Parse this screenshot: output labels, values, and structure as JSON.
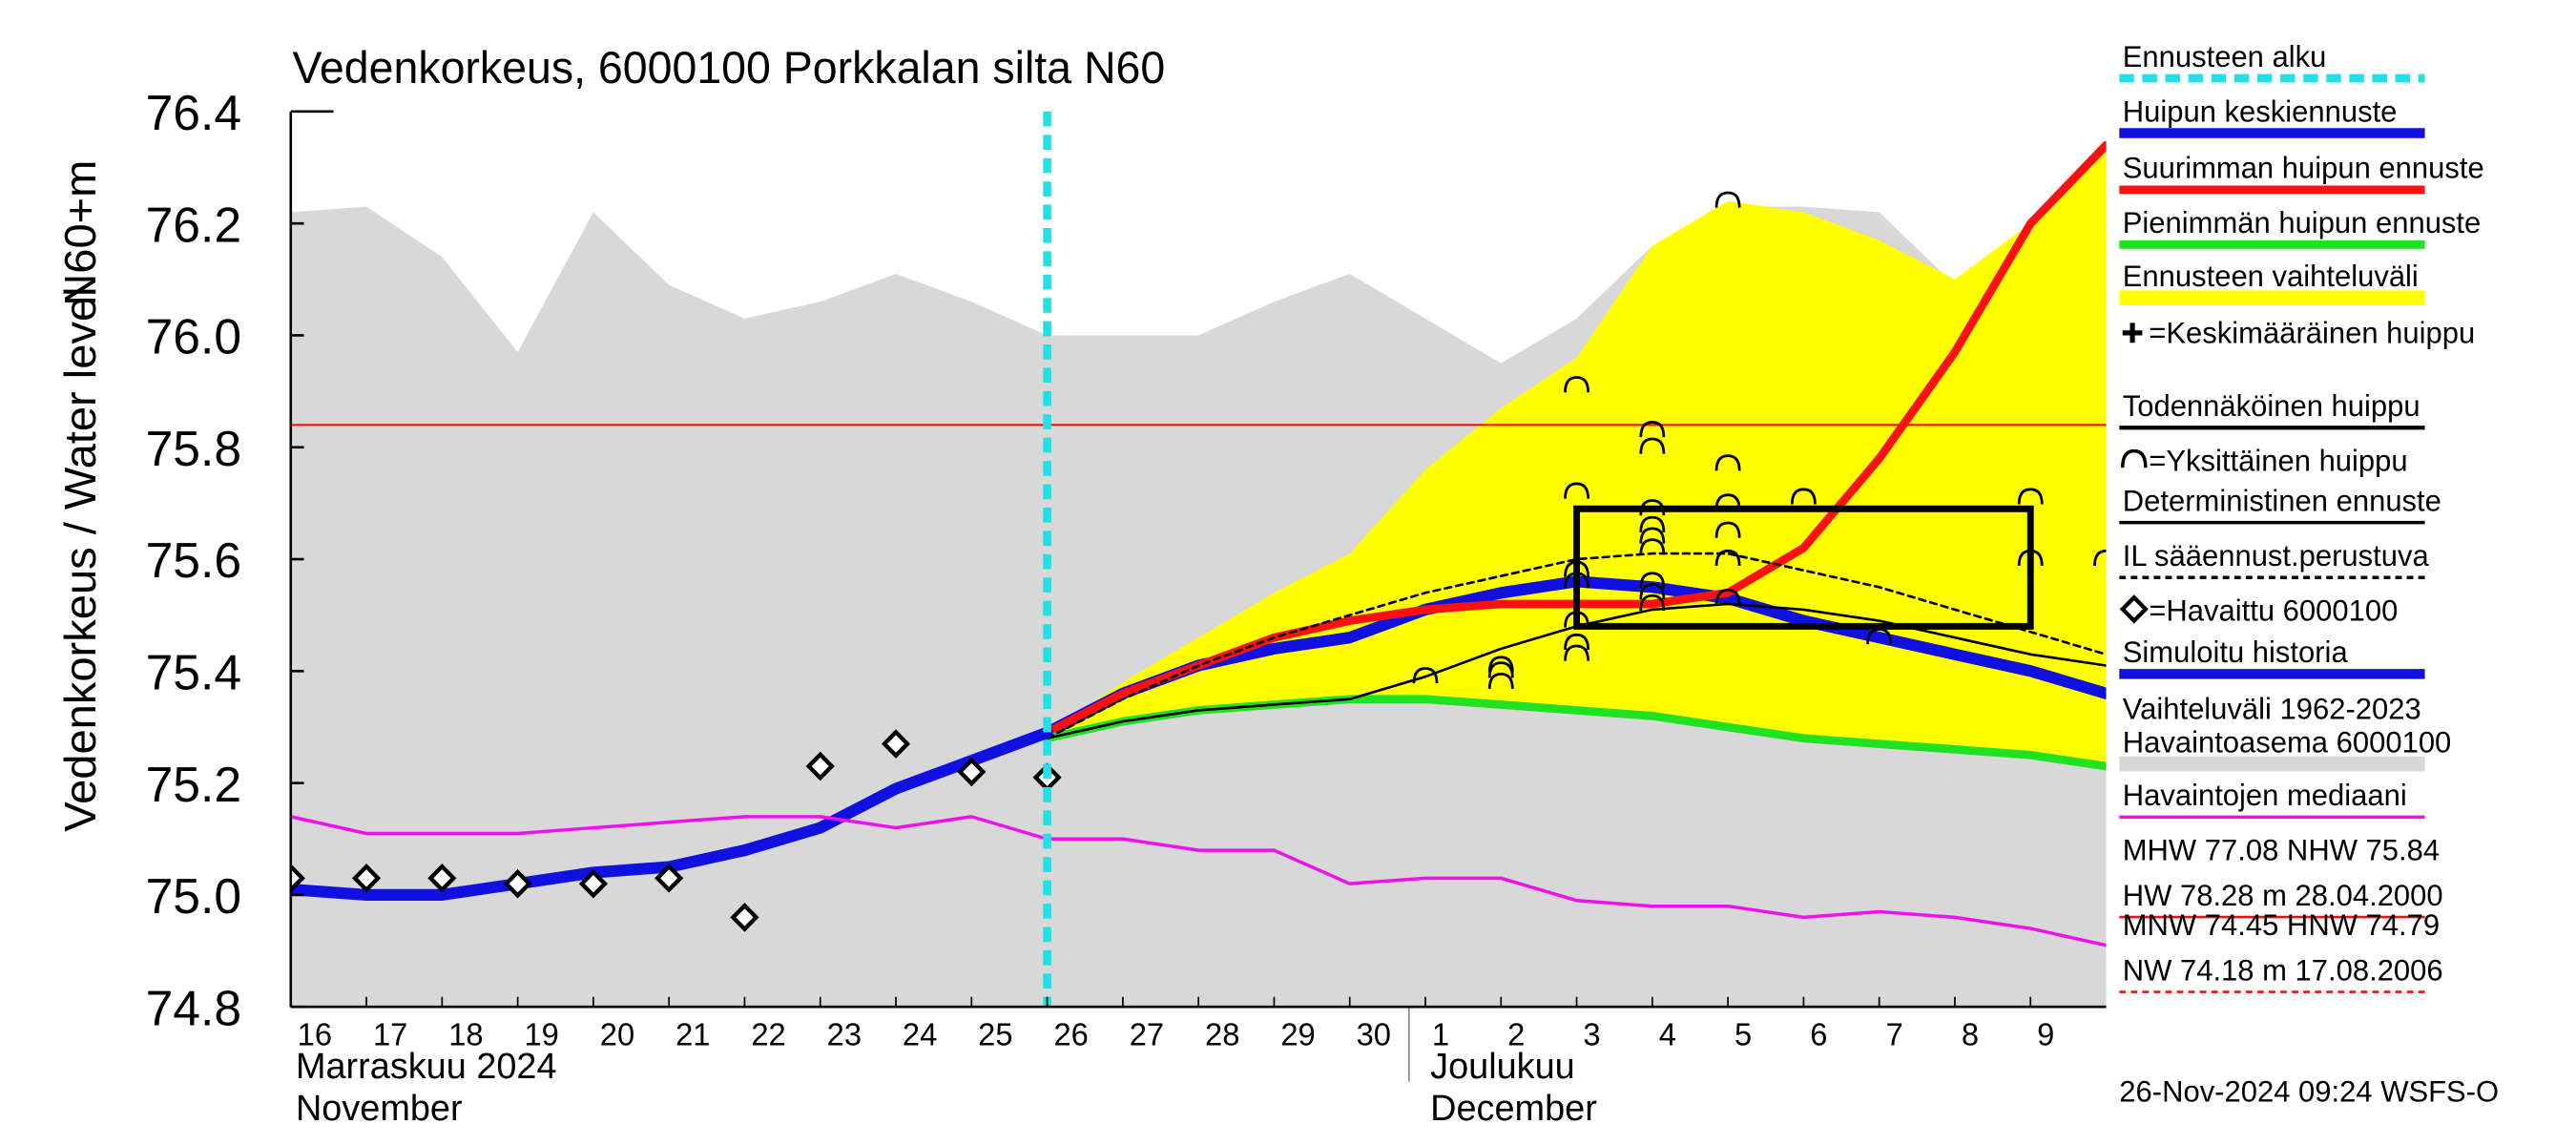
{
  "chart_data": {
    "type": "line",
    "title": "Vedenkorkeus, 6000100 Porkkalan silta N60",
    "ylabel": "Vedenkorkeus / Water level",
    "yunit": "N60+m",
    "footer": "26-Nov-2024 09:24 WSFS-O",
    "month_labels": [
      {
        "x": "2024-11-16",
        "lines": [
          "Marraskuu 2024",
          "November"
        ]
      },
      {
        "x": "2024-12-01",
        "lines": [
          "Joulukuu",
          "December"
        ]
      }
    ],
    "xlim": [
      "2024-11-16",
      "2024-12-10"
    ],
    "ylim": [
      74.8,
      76.4
    ],
    "yticks": [
      74.8,
      {
        "value": 75.0,
        "label": "75.0"
      },
      75.2,
      75.4,
      75.6,
      75.8,
      {
        "value": 76.0,
        "label": "76.0"
      },
      76.2,
      76.4
    ],
    "xticks": [
      {
        "value": "2024-11-16",
        "label": "16"
      },
      {
        "value": "2024-11-17",
        "label": "17"
      },
      {
        "value": "2024-11-18",
        "label": "18"
      },
      {
        "value": "2024-11-19",
        "label": "19"
      },
      {
        "value": "2024-11-20",
        "label": "20"
      },
      {
        "value": "2024-11-21",
        "label": "21"
      },
      {
        "value": "2024-11-22",
        "label": "22"
      },
      {
        "value": "2024-11-23",
        "label": "23"
      },
      {
        "value": "2024-11-24",
        "label": "24"
      },
      {
        "value": "2024-11-25",
        "label": "25"
      },
      {
        "value": "2024-11-26",
        "label": "26"
      },
      {
        "value": "2024-11-27",
        "label": "27"
      },
      {
        "value": "2024-11-28",
        "label": "28"
      },
      {
        "value": "2024-11-29",
        "label": "29"
      },
      {
        "value": "2024-11-30",
        "label": "30"
      },
      {
        "value": "2024-12-01",
        "label": "1"
      },
      {
        "value": "2024-12-02",
        "label": "2"
      },
      {
        "value": "2024-12-03",
        "label": "3"
      },
      {
        "value": "2024-12-04",
        "label": "4"
      },
      {
        "value": "2024-12-05",
        "label": "5"
      },
      {
        "value": "2024-12-06",
        "label": "6"
      },
      {
        "value": "2024-12-07",
        "label": "7"
      },
      {
        "value": "2024-12-08",
        "label": "8"
      },
      {
        "value": "2024-12-09",
        "label": "9"
      }
    ],
    "x": [
      "2024-11-16",
      "2024-11-17",
      "2024-11-18",
      "2024-11-19",
      "2024-11-20",
      "2024-11-21",
      "2024-11-22",
      "2024-11-23",
      "2024-11-24",
      "2024-11-25",
      "2024-11-26",
      "2024-11-27",
      "2024-11-28",
      "2024-11-29",
      "2024-11-30",
      "2024-12-01",
      "2024-12-02",
      "2024-12-03",
      "2024-12-04",
      "2024-12-05",
      "2024-12-06",
      "2024-12-07",
      "2024-12-08",
      "2024-12-09",
      "2024-12-10"
    ],
    "series": [
      {
        "name": "Ennusteen alku",
        "kind": "vline",
        "color": "#22e0e8",
        "x": "2024-11-26"
      },
      {
        "name": "Huipun keskiennuste",
        "kind": "line",
        "color": "#1010e0",
        "linewidth": 7,
        "values": [
          null,
          null,
          null,
          null,
          null,
          null,
          null,
          null,
          null,
          null,
          75.29,
          75.36,
          75.41,
          75.44,
          75.46,
          75.51,
          75.54,
          75.56,
          75.55,
          75.53,
          75.49,
          75.46,
          75.43,
          75.4,
          75.36
        ]
      },
      {
        "name": "Suurimman huipun ennuste",
        "kind": "line",
        "color": "#ff1010",
        "linewidth": 5,
        "values": [
          null,
          null,
          null,
          null,
          null,
          null,
          null,
          null,
          null,
          null,
          75.29,
          75.36,
          75.41,
          75.46,
          75.49,
          75.51,
          75.52,
          75.52,
          75.52,
          75.54,
          75.62,
          75.78,
          75.97,
          76.2,
          76.34
        ]
      },
      {
        "name": "Pienimmän huipun ennuste",
        "kind": "line",
        "color": "#22e022",
        "linewidth": 5,
        "values": [
          null,
          null,
          null,
          null,
          null,
          null,
          null,
          null,
          null,
          null,
          75.28,
          75.31,
          75.33,
          75.34,
          75.35,
          75.35,
          75.34,
          75.33,
          75.32,
          75.3,
          75.28,
          75.27,
          75.26,
          75.25,
          75.23
        ]
      },
      {
        "name": "Ennusteen vaihteluväli",
        "kind": "band",
        "color": "#ffff00",
        "lower": [
          null,
          null,
          null,
          null,
          null,
          null,
          null,
          null,
          null,
          null,
          75.28,
          75.31,
          75.33,
          75.34,
          75.35,
          75.35,
          75.34,
          75.33,
          75.32,
          75.3,
          75.28,
          75.27,
          75.26,
          75.25,
          75.23
        ],
        "upper": [
          null,
          null,
          null,
          null,
          null,
          null,
          null,
          null,
          null,
          null,
          75.29,
          75.38,
          75.46,
          75.54,
          75.61,
          75.76,
          75.87,
          75.96,
          76.16,
          76.24,
          76.22,
          76.17,
          76.1,
          76.2,
          76.33
        ]
      },
      {
        "name": "=Keskimääräinen huippu",
        "kind": "none",
        "marker": "plus",
        "color": "#000000"
      },
      {
        "name": "Todennäköinen huippu",
        "kind": "box",
        "color": "#000000",
        "x": [
          "2024-12-03",
          "2024-12-09"
        ],
        "y": [
          75.48,
          75.69
        ]
      },
      {
        "name": "=Yksittäinen huippu",
        "kind": "arcs",
        "color": "#000000",
        "x": [
          "2024-12-01",
          "2024-12-02",
          "2024-12-02",
          "2024-12-02",
          "2024-12-03",
          "2024-12-03",
          "2024-12-03",
          "2024-12-03",
          "2024-12-03",
          "2024-12-03",
          "2024-12-03",
          "2024-12-04",
          "2024-12-04",
          "2024-12-04",
          "2024-12-04",
          "2024-12-04",
          "2024-12-04",
          "2024-12-04",
          "2024-12-04",
          "2024-12-04",
          "2024-12-05",
          "2024-12-05",
          "2024-12-05",
          "2024-12-05",
          "2024-12-05",
          "2024-12-05",
          "2024-12-06",
          "2024-12-07",
          "2024-12-09",
          "2024-12-09",
          "2024-12-10"
        ],
        "values": [
          75.39,
          75.41,
          75.4,
          75.38,
          75.91,
          75.72,
          75.58,
          75.56,
          75.49,
          75.45,
          75.43,
          75.83,
          75.8,
          75.69,
          75.66,
          75.64,
          75.62,
          75.56,
          75.54,
          75.52,
          76.24,
          75.77,
          75.7,
          75.65,
          75.6,
          75.53,
          75.71,
          75.46,
          75.71,
          75.6,
          75.6
        ]
      },
      {
        "name": "Deterministinen ennuste",
        "kind": "line",
        "color": "#000000",
        "linewidth": 1.5,
        "values": [
          null,
          null,
          null,
          null,
          null,
          null,
          null,
          null,
          null,
          null,
          75.28,
          75.31,
          75.33,
          75.34,
          75.35,
          75.39,
          75.44,
          75.48,
          75.51,
          75.52,
          75.51,
          75.49,
          75.46,
          75.43,
          75.41
        ]
      },
      {
        "name": "IL sääennust.perustuva",
        "kind": "line",
        "color": "#000000",
        "linewidth": 1.5,
        "dash": true,
        "values": [
          null,
          null,
          null,
          null,
          null,
          null,
          null,
          null,
          null,
          null,
          75.28,
          75.35,
          75.41,
          75.46,
          75.5,
          75.54,
          75.57,
          75.6,
          75.61,
          75.61,
          75.58,
          75.55,
          75.51,
          75.47,
          75.43
        ]
      },
      {
        "name": "=Havaittu 6000100",
        "kind": "markers",
        "color": "#000000",
        "values": [
          75.03,
          75.03,
          75.03,
          75.02,
          75.02,
          75.03,
          74.96,
          75.23,
          75.27,
          75.22,
          75.21,
          null,
          null,
          null,
          null,
          null,
          null,
          null,
          null,
          null,
          null,
          null,
          null,
          null,
          null
        ]
      },
      {
        "name": "Simuloitu historia",
        "kind": "line",
        "color": "#1010e0",
        "linewidth": 7,
        "values": [
          75.01,
          75.0,
          75.0,
          75.02,
          75.04,
          75.05,
          75.08,
          75.12,
          75.19,
          75.24,
          75.29,
          null,
          null,
          null,
          null,
          null,
          null,
          null,
          null,
          null,
          null,
          null,
          null,
          null,
          null
        ]
      },
      {
        "name": [
          "Vaihteluväli 1962-2023",
          " Havaintoasema 6000100"
        ],
        "kind": "area",
        "color": "#d8d8d8",
        "values": [
          76.22,
          76.23,
          76.14,
          75.97,
          76.22,
          76.09,
          76.03,
          76.06,
          76.11,
          76.06,
          76.0,
          76.0,
          76.0,
          76.06,
          76.11,
          76.03,
          75.95,
          76.03,
          76.16,
          76.23,
          76.23,
          76.22,
          76.09,
          76.18,
          76.2
        ]
      },
      {
        "name": "Havaintojen mediaani",
        "kind": "line",
        "color": "#ee11ee",
        "linewidth": 2,
        "values": [
          75.14,
          75.11,
          75.11,
          75.11,
          75.12,
          75.13,
          75.14,
          75.14,
          75.12,
          75.14,
          75.1,
          75.1,
          75.08,
          75.08,
          75.02,
          75.03,
          75.03,
          74.99,
          74.98,
          74.98,
          74.96,
          74.97,
          74.96,
          74.94,
          74.91
        ]
      },
      {
        "name": [
          "MHW  77.08 NHW  75.84",
          "HW  78.28 m 28.04.2000"
        ],
        "kind": "hline",
        "color": "#ee1111",
        "value": 75.84
      },
      {
        "name": [
          "MNW  74.45 HNW  74.79",
          "NW  74.18 m 17.08.2006"
        ],
        "kind": "none",
        "color": "#ee1111",
        "dash": true
      }
    ]
  }
}
